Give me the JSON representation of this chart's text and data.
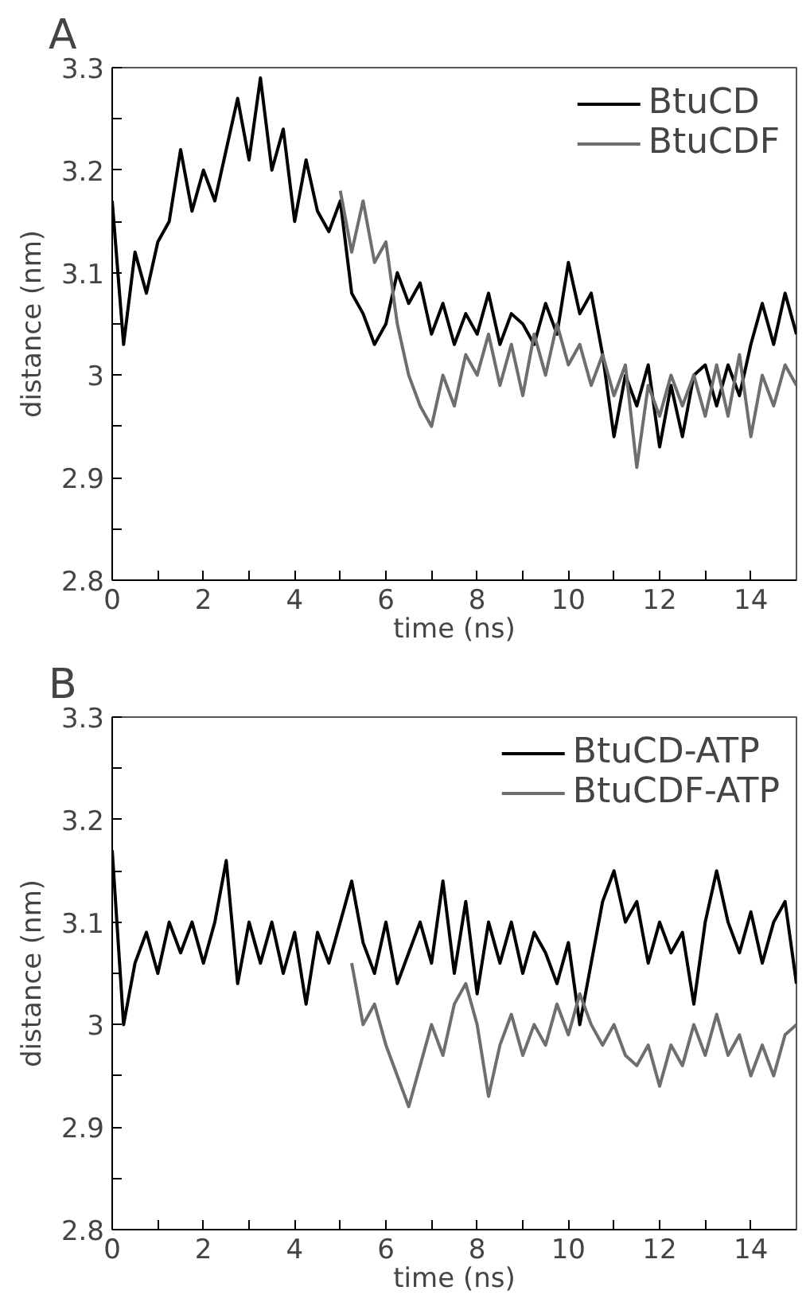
{
  "chart_data": [
    {
      "type": "line",
      "title": "A",
      "xlabel": "time (ns)",
      "ylabel": "distance (nm)",
      "xlim": [
        0,
        15
      ],
      "ylim": [
        2.8,
        3.3
      ],
      "xticks": [
        0,
        {
          "value": 1,
          "label": null
        },
        2,
        {
          "value": 3,
          "label": null
        },
        4,
        {
          "value": 5,
          "label": null
        },
        6,
        {
          "value": 7,
          "label": null
        },
        8,
        {
          "value": 9,
          "label": null
        },
        10,
        {
          "value": 11,
          "label": null
        },
        12,
        {
          "value": 13,
          "label": null
        },
        14
      ],
      "yticks": [
        2.8,
        {
          "value": 2.85,
          "label": null
        },
        2.9,
        {
          "value": 2.95,
          "label": null
        },
        3,
        {
          "value": 3.05,
          "label": null
        },
        3.1,
        {
          "value": 3.15,
          "label": null
        },
        3.2,
        {
          "value": 3.25,
          "label": null
        },
        3.3
      ],
      "grid": false,
      "legend": "top right",
      "line_style": "solid",
      "series": [
        {
          "name": "BtuCD",
          "color": "#000000",
          "x": [
            0,
            0.25,
            0.5,
            0.75,
            1,
            1.25,
            1.5,
            1.75,
            2,
            2.25,
            2.5,
            2.75,
            3,
            3.25,
            3.5,
            3.75,
            4,
            4.25,
            4.5,
            4.75,
            5,
            5.25,
            5.5,
            5.75,
            6,
            6.25,
            6.5,
            6.75,
            7,
            7.25,
            7.5,
            7.75,
            8,
            8.25,
            8.5,
            8.75,
            9,
            9.25,
            9.5,
            9.75,
            10,
            10.25,
            10.5,
            10.75,
            11,
            11.25,
            11.5,
            11.75,
            12,
            12.25,
            12.5,
            12.75,
            13,
            13.25,
            13.5,
            13.75,
            14,
            14.25,
            14.5,
            14.75,
            15
          ],
          "values": [
            3.17,
            3.03,
            3.12,
            3.08,
            3.13,
            3.15,
            3.22,
            3.16,
            3.2,
            3.17,
            3.22,
            3.27,
            3.21,
            3.29,
            3.2,
            3.24,
            3.15,
            3.21,
            3.16,
            3.14,
            3.17,
            3.08,
            3.06,
            3.03,
            3.05,
            3.1,
            3.07,
            3.09,
            3.04,
            3.07,
            3.03,
            3.06,
            3.04,
            3.08,
            3.03,
            3.06,
            3.05,
            3.03,
            3.07,
            3.04,
            3.11,
            3.06,
            3.08,
            3.02,
            2.94,
            3.0,
            2.97,
            3.01,
            2.93,
            2.99,
            2.94,
            3.0,
            3.01,
            2.97,
            3.01,
            2.98,
            3.03,
            3.07,
            3.03,
            3.08,
            3.04
          ]
        },
        {
          "name": "BtuCDF",
          "color": "#6e6e6e",
          "x": [
            5,
            5.25,
            5.5,
            5.75,
            6,
            6.25,
            6.5,
            6.75,
            7,
            7.25,
            7.5,
            7.75,
            8,
            8.25,
            8.5,
            8.75,
            9,
            9.25,
            9.5,
            9.75,
            10,
            10.25,
            10.5,
            10.75,
            11,
            11.25,
            11.5,
            11.75,
            12,
            12.25,
            12.5,
            12.75,
            13,
            13.25,
            13.5,
            13.75,
            14,
            14.25,
            14.5,
            14.75,
            15
          ],
          "values": [
            3.18,
            3.12,
            3.17,
            3.11,
            3.13,
            3.05,
            3.0,
            2.97,
            2.95,
            3.0,
            2.97,
            3.02,
            3.0,
            3.04,
            2.99,
            3.03,
            2.98,
            3.04,
            3.0,
            3.05,
            3.01,
            3.03,
            2.99,
            3.02,
            2.98,
            3.01,
            2.91,
            2.99,
            2.96,
            3.0,
            2.97,
            3.0,
            2.96,
            3.01,
            2.96,
            3.02,
            2.94,
            3.0,
            2.97,
            3.01,
            2.99
          ]
        }
      ]
    },
    {
      "type": "line",
      "title": "B",
      "xlabel": "time (ns)",
      "ylabel": "distance (nm)",
      "xlim": [
        0,
        15
      ],
      "ylim": [
        2.8,
        3.3
      ],
      "xticks": [
        0,
        {
          "value": 1,
          "label": null
        },
        2,
        {
          "value": 3,
          "label": null
        },
        4,
        {
          "value": 5,
          "label": null
        },
        6,
        {
          "value": 7,
          "label": null
        },
        8,
        {
          "value": 9,
          "label": null
        },
        10,
        {
          "value": 11,
          "label": null
        },
        12,
        {
          "value": 13,
          "label": null
        },
        14
      ],
      "yticks": [
        2.8,
        {
          "value": 2.85,
          "label": null
        },
        2.9,
        {
          "value": 2.95,
          "label": null
        },
        3,
        {
          "value": 3.05,
          "label": null
        },
        3.1,
        {
          "value": 3.15,
          "label": null
        },
        3.2,
        {
          "value": 3.25,
          "label": null
        },
        3.3
      ],
      "grid": false,
      "legend": "top right",
      "line_style": "solid",
      "series": [
        {
          "name": "BtuCD-ATP",
          "color": "#000000",
          "x": [
            0,
            0.25,
            0.5,
            0.75,
            1,
            1.25,
            1.5,
            1.75,
            2,
            2.25,
            2.5,
            2.75,
            3,
            3.25,
            3.5,
            3.75,
            4,
            4.25,
            4.5,
            4.75,
            5,
            5.25,
            5.5,
            5.75,
            6,
            6.25,
            6.5,
            6.75,
            7,
            7.25,
            7.5,
            7.75,
            8,
            8.25,
            8.5,
            8.75,
            9,
            9.25,
            9.5,
            9.75,
            10,
            10.25,
            10.5,
            10.75,
            11,
            11.25,
            11.5,
            11.75,
            12,
            12.25,
            12.5,
            12.75,
            13,
            13.25,
            13.5,
            13.75,
            14,
            14.25,
            14.5,
            14.75,
            15
          ],
          "values": [
            3.17,
            3.0,
            3.06,
            3.09,
            3.05,
            3.1,
            3.07,
            3.1,
            3.06,
            3.1,
            3.16,
            3.04,
            3.1,
            3.06,
            3.1,
            3.05,
            3.09,
            3.02,
            3.09,
            3.06,
            3.1,
            3.14,
            3.08,
            3.05,
            3.1,
            3.04,
            3.07,
            3.1,
            3.06,
            3.14,
            3.05,
            3.12,
            3.03,
            3.1,
            3.06,
            3.1,
            3.05,
            3.09,
            3.07,
            3.04,
            3.08,
            3.0,
            3.06,
            3.12,
            3.15,
            3.1,
            3.12,
            3.06,
            3.1,
            3.07,
            3.09,
            3.02,
            3.1,
            3.15,
            3.1,
            3.07,
            3.11,
            3.06,
            3.1,
            3.12,
            3.04
          ]
        },
        {
          "name": "BtuCDF-ATP",
          "color": "#6e6e6e",
          "x": [
            5.25,
            5.5,
            5.75,
            6,
            6.25,
            6.5,
            6.75,
            7,
            7.25,
            7.5,
            7.75,
            8,
            8.25,
            8.5,
            8.75,
            9,
            9.25,
            9.5,
            9.75,
            10,
            10.25,
            10.5,
            10.75,
            11,
            11.25,
            11.5,
            11.75,
            12,
            12.25,
            12.5,
            12.75,
            13,
            13.25,
            13.5,
            13.75,
            14,
            14.25,
            14.5,
            14.75,
            15
          ],
          "values": [
            3.06,
            3.0,
            3.02,
            2.98,
            2.95,
            2.92,
            2.96,
            3.0,
            2.97,
            3.02,
            3.04,
            3.0,
            2.93,
            2.98,
            3.01,
            2.97,
            3.0,
            2.98,
            3.02,
            2.99,
            3.03,
            3.0,
            2.98,
            3.0,
            2.97,
            2.96,
            2.98,
            2.94,
            2.98,
            2.96,
            3.0,
            2.97,
            3.01,
            2.97,
            2.99,
            2.95,
            2.98,
            2.95,
            2.99,
            3.0
          ]
        }
      ]
    }
  ]
}
